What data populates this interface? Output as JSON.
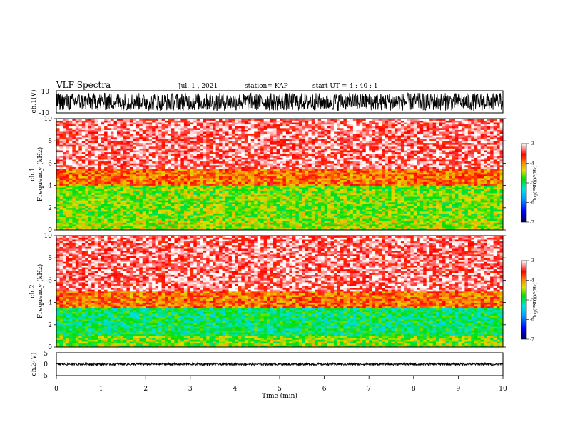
{
  "header": {
    "title": "VLF Spectra",
    "date": "Jul.  1  , 2021",
    "station": "station= KAP",
    "start": "start  UT =   4 : 40 : 1"
  },
  "chart_data": [
    {
      "type": "line",
      "ylabel": "ch.1(V)",
      "ylim": [
        -10,
        10
      ],
      "yticks": [
        "10",
        "-10"
      ],
      "xlim": [
        0,
        10
      ],
      "series": [
        {
          "color": "#000000",
          "amplitude_range": [
            -8,
            8
          ]
        }
      ]
    },
    {
      "type": "heatmap",
      "ylabel_top": "ch.1",
      "ylabel": "Frequency  (kHz)",
      "ylim": [
        0,
        10
      ],
      "yticks": [
        "0",
        "2",
        "4",
        "6",
        "8",
        "10"
      ],
      "xlim": [
        0,
        10
      ],
      "colorbar": {
        "label": "log(PSD)(V²/Hz)",
        "range": [
          -7,
          -3
        ],
        "ticks": [
          "-3",
          "-4",
          "-5",
          "-6",
          "-7"
        ]
      },
      "bands": [
        {
          "range_khz": [
            0,
            1
          ],
          "level": -4.5
        },
        {
          "range_khz": [
            1,
            4
          ],
          "level": -4.6
        },
        {
          "range_khz": [
            4,
            5.5
          ],
          "level": -3.9
        },
        {
          "range_khz": [
            5.5,
            10
          ],
          "level": -3.3
        }
      ]
    },
    {
      "type": "heatmap",
      "ylabel_top": "ch.2",
      "ylabel": "Frequency  (kHz)",
      "ylim": [
        0,
        10
      ],
      "yticks": [
        "0",
        "2",
        "4",
        "6",
        "8",
        "10"
      ],
      "xlim": [
        0,
        10
      ],
      "colorbar": {
        "label": "log(PSD)(V²/Hz)",
        "range": [
          -7,
          -3
        ],
        "ticks": [
          "-3",
          "-4",
          "-5",
          "-6",
          "-7"
        ]
      },
      "bands": [
        {
          "range_khz": [
            0,
            1
          ],
          "level": -4.6
        },
        {
          "range_khz": [
            1,
            3.5
          ],
          "level": -5.0
        },
        {
          "range_khz": [
            3.5,
            5
          ],
          "level": -3.9
        },
        {
          "range_khz": [
            5,
            10
          ],
          "level": -3.3
        }
      ]
    },
    {
      "type": "line",
      "ylabel": "ch.3(V)",
      "ylim": [
        -5,
        5
      ],
      "yticks": [
        "5",
        "0",
        "-5"
      ],
      "xlim": [
        0,
        10
      ],
      "xlabel": "Time  (min)",
      "xticks": [
        "0",
        "1",
        "2",
        "3",
        "4",
        "5",
        "6",
        "7",
        "8",
        "9",
        "10"
      ],
      "series": [
        {
          "color": "#000000",
          "amplitude_range": [
            -0.5,
            0.5
          ]
        }
      ]
    }
  ]
}
